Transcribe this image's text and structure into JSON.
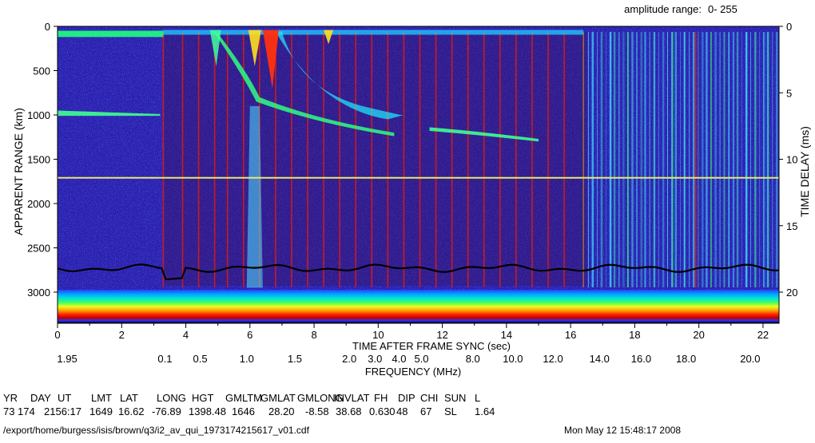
{
  "amplitude_range_label": "amplitude range:",
  "amplitude_range_value": "0- 255",
  "chart_data": {
    "type": "heatmap",
    "title": "",
    "ylabel_left": "APPARENT RANGE (km)",
    "ylabel_right": "TIME DELAY (ms)",
    "xlabel_time": "TIME AFTER FRAME SYNC (sec)",
    "xlabel_frequency": "FREQUENCY (MHz)",
    "x_time_range": [
      0,
      22.5
    ],
    "y_range_km": [
      0,
      3300
    ],
    "y_delay_range_ms": [
      0,
      22
    ],
    "x_time_ticks": [
      "0",
      "2",
      "4",
      "6",
      "8",
      "10",
      "12",
      "14",
      "16",
      "18",
      "20",
      "22"
    ],
    "y_range_ticks": [
      "0",
      "500",
      "1000",
      "1500",
      "2000",
      "2500",
      "3000"
    ],
    "y_delay_ticks": [
      "0",
      "5",
      "10",
      "15",
      "20"
    ],
    "frequency_labels": [
      {
        "text": "1.95",
        "t": 0.3
      },
      {
        "text": "0.1",
        "t": 3.35
      },
      {
        "text": "0.5",
        "t": 4.45
      },
      {
        "text": "1.0",
        "t": 5.9
      },
      {
        "text": "1.5",
        "t": 7.4
      },
      {
        "text": "2.0",
        "t": 9.1
      },
      {
        "text": "3.0",
        "t": 9.9
      },
      {
        "text": "4.0",
        "t": 10.65
      },
      {
        "text": "5.0",
        "t": 11.35
      },
      {
        "text": "8.0",
        "t": 12.95
      },
      {
        "text": "10.0",
        "t": 14.2
      },
      {
        "text": "12.0",
        "t": 15.45
      },
      {
        "text": "14.0",
        "t": 16.9
      },
      {
        "text": "16.0",
        "t": 18.2
      },
      {
        "text": "18.0",
        "t": 19.6
      },
      {
        "text": "20.0",
        "t": 21.6
      }
    ],
    "reference_line_km": 1710,
    "background_trace_km_approx": 2730,
    "colors": {
      "background": "#2b1fb0",
      "trace": "#33ff66",
      "hot": "#ff2200",
      "marker_lines": "#d01818",
      "horizontal_line": "#e8e870"
    }
  },
  "metadata": {
    "headers": [
      "YR",
      "DAY",
      "UT",
      "LMT",
      "LAT",
      "LONG",
      "HGT",
      "GMLTM",
      "GMLAT",
      "GMLONG",
      "INVLAT",
      "FH",
      "DIP",
      "CHI",
      "SUN",
      "L"
    ],
    "values": [
      "73",
      "174",
      "2156:17",
      "1649",
      "16.62",
      "-76.89",
      "1398.48",
      "1646",
      "28.20",
      "-8.58",
      "38.68",
      "0.630",
      "48",
      "67",
      "SL",
      "1.64"
    ]
  },
  "file_path": "/export/home/burgess/isis/brown/q3/i2_av_qui_1973174215617_v01.cdf",
  "timestamp": "Mon May 12 15:48:17 2008"
}
